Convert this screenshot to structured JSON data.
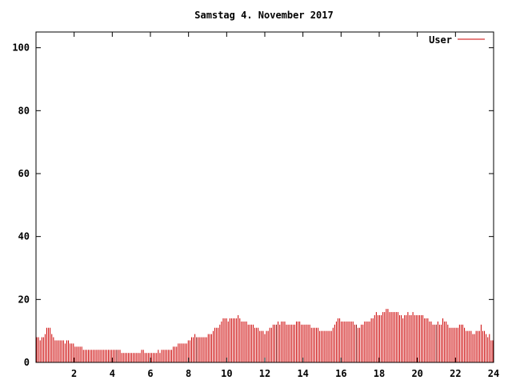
{
  "chart_data": {
    "type": "bar",
    "title": "Samstag 4. November 2017",
    "xlabel": "",
    "ylabel": "",
    "xlim": [
      0,
      24
    ],
    "ylim": [
      0,
      105
    ],
    "xticks": [
      2,
      4,
      6,
      8,
      10,
      12,
      14,
      16,
      18,
      20,
      22,
      24
    ],
    "yticks": [
      0,
      20,
      40,
      60,
      80,
      100
    ],
    "grid": false,
    "legend_position": "top-right",
    "series": [
      {
        "name": "User",
        "color": "#cc0000",
        "hour_marker_color": "#880000",
        "values": [
          8,
          8,
          7,
          8,
          8,
          9,
          11,
          11,
          11,
          9,
          8,
          7,
          7,
          7,
          7,
          7,
          7,
          6,
          7,
          7,
          6,
          6,
          6,
          5,
          5,
          5,
          5,
          5,
          4,
          4,
          4,
          4,
          4,
          4,
          4,
          4,
          4,
          4,
          4,
          4,
          4,
          4,
          4,
          4,
          4,
          4,
          4,
          4,
          4,
          4,
          4,
          3,
          3,
          3,
          3,
          3,
          3,
          3,
          3,
          3,
          3,
          3,
          3,
          4,
          4,
          3,
          3,
          3,
          3,
          3,
          3,
          3,
          3,
          4,
          3,
          4,
          4,
          4,
          4,
          4,
          4,
          4,
          5,
          5,
          5,
          6,
          6,
          6,
          6,
          6,
          6,
          7,
          7,
          8,
          8,
          9,
          8,
          8,
          8,
          8,
          8,
          8,
          8,
          9,
          9,
          9,
          10,
          11,
          11,
          11,
          12,
          13,
          14,
          14,
          14,
          13,
          14,
          14,
          14,
          14,
          14,
          15,
          14,
          13,
          13,
          13,
          13,
          12,
          12,
          12,
          12,
          11,
          11,
          11,
          10,
          10,
          10,
          9,
          10,
          10,
          11,
          11,
          12,
          12,
          12,
          13,
          12,
          13,
          13,
          13,
          12,
          12,
          12,
          12,
          12,
          12,
          13,
          13,
          13,
          12,
          12,
          12,
          12,
          12,
          12,
          11,
          11,
          11,
          11,
          11,
          10,
          10,
          10,
          10,
          10,
          10,
          10,
          10,
          11,
          12,
          13,
          14,
          14,
          13,
          13,
          13,
          13,
          13,
          13,
          13,
          13,
          12,
          12,
          11,
          11,
          12,
          12,
          13,
          13,
          13,
          13,
          14,
          14,
          15,
          16,
          15,
          15,
          15,
          16,
          16,
          17,
          17,
          16,
          16,
          16,
          16,
          16,
          16,
          15,
          15,
          14,
          15,
          15,
          16,
          15,
          15,
          16,
          15,
          15,
          15,
          15,
          15,
          15,
          14,
          14,
          14,
          13,
          13,
          12,
          12,
          12,
          13,
          12,
          12,
          14,
          13,
          13,
          12,
          11,
          11,
          11,
          11,
          11,
          11,
          12,
          12,
          12,
          11,
          10,
          10,
          10,
          10,
          9,
          9,
          10,
          10,
          10,
          12,
          10,
          10,
          9,
          8,
          9,
          7,
          7
        ]
      }
    ]
  }
}
